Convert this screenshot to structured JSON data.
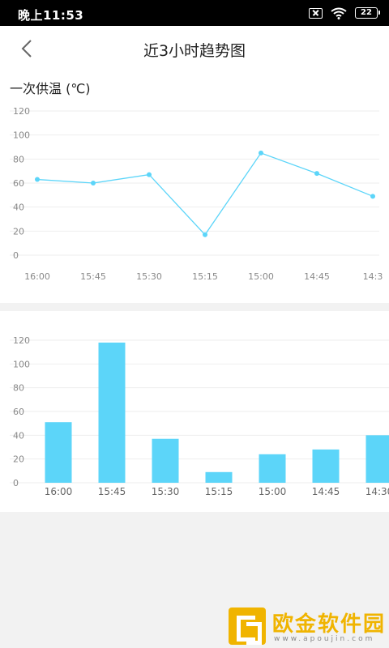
{
  "status_bar": {
    "time": "晚上11:53",
    "battery": "22",
    "icons": [
      "sim-off-icon",
      "wifi-icon",
      "battery-icon"
    ]
  },
  "header": {
    "back_icon": "chevron-left-icon",
    "title": "近3小时趋势图"
  },
  "colors": {
    "accent": "#5cd5f9",
    "grid": "#eeeeee",
    "axis_text": "#888888",
    "background": "#f2f2f2",
    "watermark": "#f0b400"
  },
  "watermark": {
    "name": "欧金软件园",
    "url": "www.apoujin.com"
  },
  "chart_data": [
    {
      "type": "line",
      "title": "一次供温 (℃)",
      "categories": [
        "16:00",
        "15:45",
        "15:30",
        "15:15",
        "15:00",
        "14:45",
        "14:3"
      ],
      "series": [
        {
          "values": [
            63,
            60,
            67,
            17,
            85,
            68,
            49
          ]
        }
      ],
      "yticks": [
        0,
        20,
        40,
        60,
        80,
        100,
        120
      ],
      "ylim": [
        0,
        120
      ],
      "grid": true
    },
    {
      "type": "bar",
      "title": "",
      "categories": [
        "16:00",
        "15:45",
        "15:30",
        "15:15",
        "15:00",
        "14:45",
        "14:30"
      ],
      "series": [
        {
          "values": [
            51,
            118,
            37,
            9,
            24,
            28,
            40
          ]
        }
      ],
      "yticks": [
        0,
        20,
        40,
        60,
        80,
        100,
        120
      ],
      "ylim": [
        0,
        120
      ],
      "grid": true
    }
  ]
}
